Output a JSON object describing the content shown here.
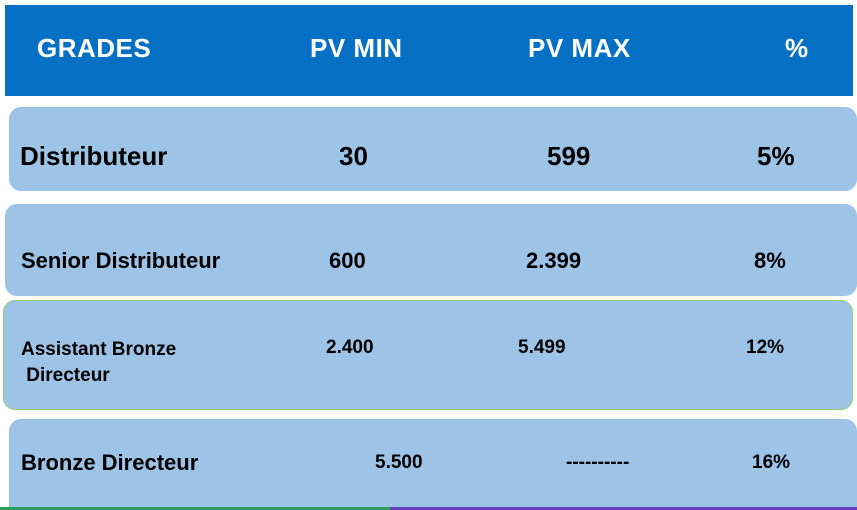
{
  "header": {
    "col_grades": "GRADES",
    "col_pv_min": "PV MIN",
    "col_pv_max": "PV MAX",
    "col_percent": "%"
  },
  "rows": [
    {
      "grade": "Distributeur",
      "pv_min": "30",
      "pv_max": "599",
      "percent": "5%"
    },
    {
      "grade": "Senior Distributeur",
      "pv_min": "600",
      "pv_max": "2.399",
      "percent": "8%"
    },
    {
      "grade_line1": "Assistant Bronze",
      "grade_line2": " Directeur",
      "pv_min": "2.400",
      "pv_max": "5.499",
      "percent": "12%"
    },
    {
      "grade": "Bronze Directeur",
      "pv_min": "5.500",
      "pv_max": "----------",
      "percent": "16%"
    }
  ],
  "colors": {
    "header_bg": "#0670c4",
    "row_bg": "#9dc3e6",
    "highlight_border": "#8fd16a"
  }
}
